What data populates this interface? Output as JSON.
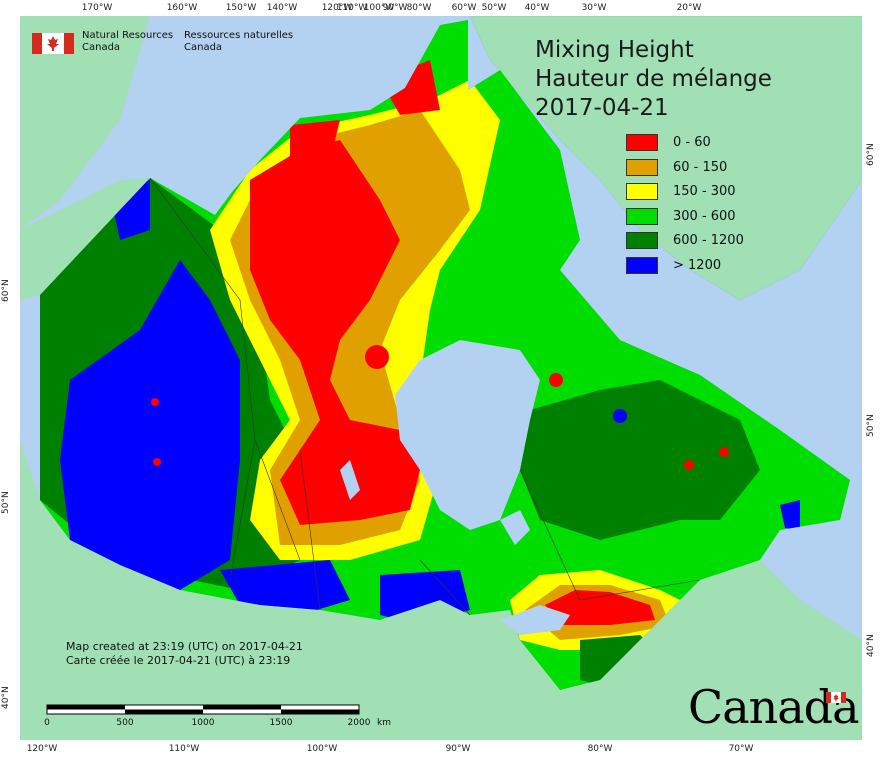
{
  "map": {
    "title_en": "Mixing Height",
    "title_fr": "Hauteur de mélange",
    "date": "2017-04-21",
    "agency": {
      "en_line1": "Natural Resources",
      "en_line2": "Canada",
      "fr_line1": "Ressources naturelles",
      "fr_line2": "Canada"
    },
    "legend": [
      {
        "label": "0 - 60",
        "color": "#ff0000"
      },
      {
        "label": "60 - 150",
        "color": "#e0a000"
      },
      {
        "label": "150 - 300",
        "color": "#ffff00"
      },
      {
        "label": "300 - 600",
        "color": "#00dd00"
      },
      {
        "label": "600 - 1200",
        "color": "#008000"
      },
      {
        "label": "> 1200",
        "color": "#0000ff"
      }
    ],
    "created_en": "Map created at 23:19 (UTC) on 2017-04-21",
    "created_fr": "Carte créée le 2017-04-21 (UTC) à 23:19",
    "scale": {
      "labels": [
        "0",
        "500",
        "1000",
        "1500",
        "2000"
      ],
      "unit": "km"
    },
    "wordmark": "Canada",
    "ticks_top": [
      "170°W",
      "160°W",
      "150°W",
      "140°W",
      "120°W",
      "110°W",
      "100°W",
      "90°W",
      "80°W",
      "60°W",
      "50°W",
      "40°W",
      "30°W",
      "20°W"
    ],
    "ticks_bottom": [
      "120°W",
      "110°W",
      "100°W",
      "90°W",
      "80°W",
      "70°W"
    ],
    "ticks_left": [
      "60°N",
      "50°N",
      "40°N"
    ],
    "ticks_right": [
      "60°N",
      "50°N",
      "40°N"
    ],
    "colors": {
      "ocean": "#b3d1f0",
      "land": "#a0e0b4",
      "red": "#ff0000",
      "orange": "#e0a000",
      "yellow": "#ffff00",
      "lightgreen": "#00dd00",
      "darkgreen": "#008000",
      "blue": "#0000ff"
    }
  }
}
